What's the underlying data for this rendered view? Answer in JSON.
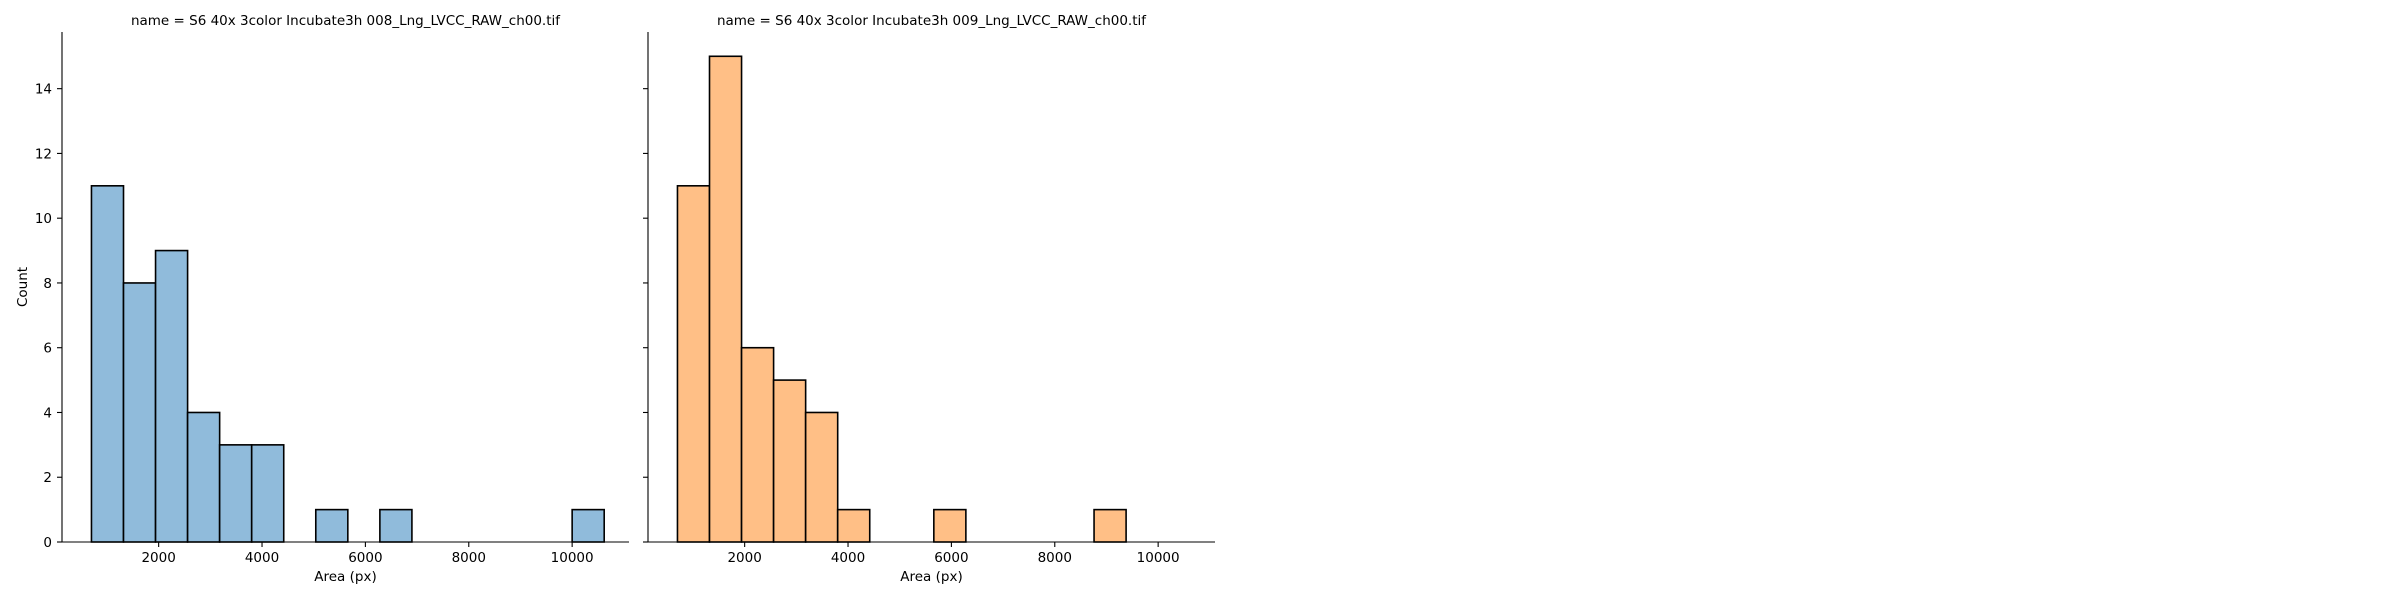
{
  "chart_data": [
    {
      "type": "bar",
      "subtype": "histogram",
      "title": "name = S6 40x 3color Incubate3h 008_Lng_LVCC_RAW_ch00.tif",
      "xlabel": "Area (px)",
      "ylabel": "Count",
      "color": "#90bbdb",
      "edge_color": "#000000",
      "xlim": [
        130,
        11100
      ],
      "ylim": [
        0,
        15.75
      ],
      "x_ticks": [
        2000,
        4000,
        6000,
        8000,
        10000
      ],
      "y_ticks": [
        0,
        2,
        4,
        6,
        8,
        10,
        12,
        14
      ],
      "bins": [
        {
          "x0": 700,
          "x1": 1320,
          "count": 11
        },
        {
          "x0": 1320,
          "x1": 1940,
          "count": 8
        },
        {
          "x0": 1940,
          "x1": 2560,
          "count": 9
        },
        {
          "x0": 2560,
          "x1": 3180,
          "count": 4
        },
        {
          "x0": 3180,
          "x1": 3800,
          "count": 3
        },
        {
          "x0": 3800,
          "x1": 4420,
          "count": 3
        },
        {
          "x0": 5040,
          "x1": 5660,
          "count": 1
        },
        {
          "x0": 6280,
          "x1": 6900,
          "count": 1
        },
        {
          "x0": 10000,
          "x1": 10620,
          "count": 1
        }
      ]
    },
    {
      "type": "bar",
      "subtype": "histogram",
      "title": "name = S6 40x 3color Incubate3h 009_Lng_LVCC_RAW_ch00.tif",
      "xlabel": "Area (px)",
      "ylabel": "",
      "color": "#ffbf86",
      "edge_color": "#000000",
      "xlim": [
        130,
        11100
      ],
      "ylim": [
        0,
        15.75
      ],
      "x_ticks": [
        2000,
        4000,
        6000,
        8000,
        10000
      ],
      "y_ticks": [
        0,
        2,
        4,
        6,
        8,
        10,
        12,
        14
      ],
      "bins": [
        {
          "x0": 700,
          "x1": 1320,
          "count": 11
        },
        {
          "x0": 1320,
          "x1": 1940,
          "count": 15
        },
        {
          "x0": 1940,
          "x1": 2560,
          "count": 6
        },
        {
          "x0": 2560,
          "x1": 3180,
          "count": 5
        },
        {
          "x0": 3180,
          "x1": 3800,
          "count": 4
        },
        {
          "x0": 3800,
          "x1": 4420,
          "count": 1
        },
        {
          "x0": 5660,
          "x1": 6280,
          "count": 1
        },
        {
          "x0": 8760,
          "x1": 9380,
          "count": 1
        }
      ]
    }
  ]
}
